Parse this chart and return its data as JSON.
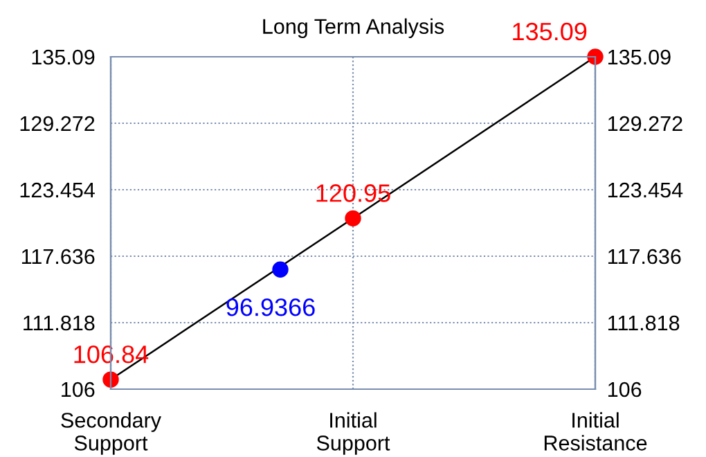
{
  "chart_data": {
    "type": "line",
    "title": "Long Term Analysis",
    "categories": [
      "Secondary\nSupport",
      "Initial\nSupport",
      "Initial\nResistance"
    ],
    "series": [
      {
        "color": "#000000",
        "values": [
          106.84,
          120.95,
          135.09
        ],
        "marker": "none"
      },
      {
        "type": "scatter",
        "color": "#ff0000",
        "values": [
          106.84,
          120.95,
          135.09
        ],
        "marker": "circle",
        "data_labels": true
      }
    ],
    "annotations": [
      "96.9366"
    ],
    "ylim": [
      106,
      135.09
    ],
    "yticks": [
      106,
      111.818,
      117.636,
      123.454,
      129.272,
      135.09
    ],
    "y2lim": [
      106,
      135.09
    ],
    "y2ticks": [
      106,
      111.818,
      117.636,
      123.454,
      129.272,
      135.09
    ],
    "grid": true,
    "legend": false
  }
}
